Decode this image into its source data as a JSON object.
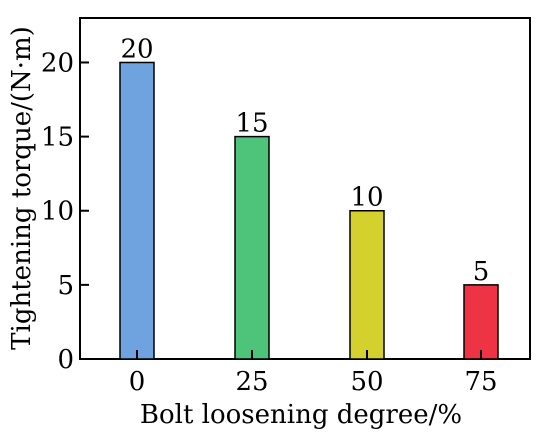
{
  "chart_data": {
    "type": "bar",
    "categories": [
      "0",
      "25",
      "50",
      "75"
    ],
    "values": [
      20,
      15,
      10,
      5
    ],
    "data_labels": [
      "20",
      "15",
      "10",
      "5"
    ],
    "bar_colors": [
      "#6fa3e0",
      "#4dc47a",
      "#d4d02e",
      "#ee3344"
    ],
    "title": "",
    "xlabel": "Bolt loosening degree/%",
    "ylabel": "Tightening torque/(N·m)",
    "ylim": [
      0,
      23
    ],
    "y_ticks": [
      0,
      5,
      10,
      15,
      20
    ],
    "y_tick_labels": [
      "0",
      "5",
      "10",
      "15",
      "20"
    ],
    "grid": false,
    "legend": "none"
  }
}
